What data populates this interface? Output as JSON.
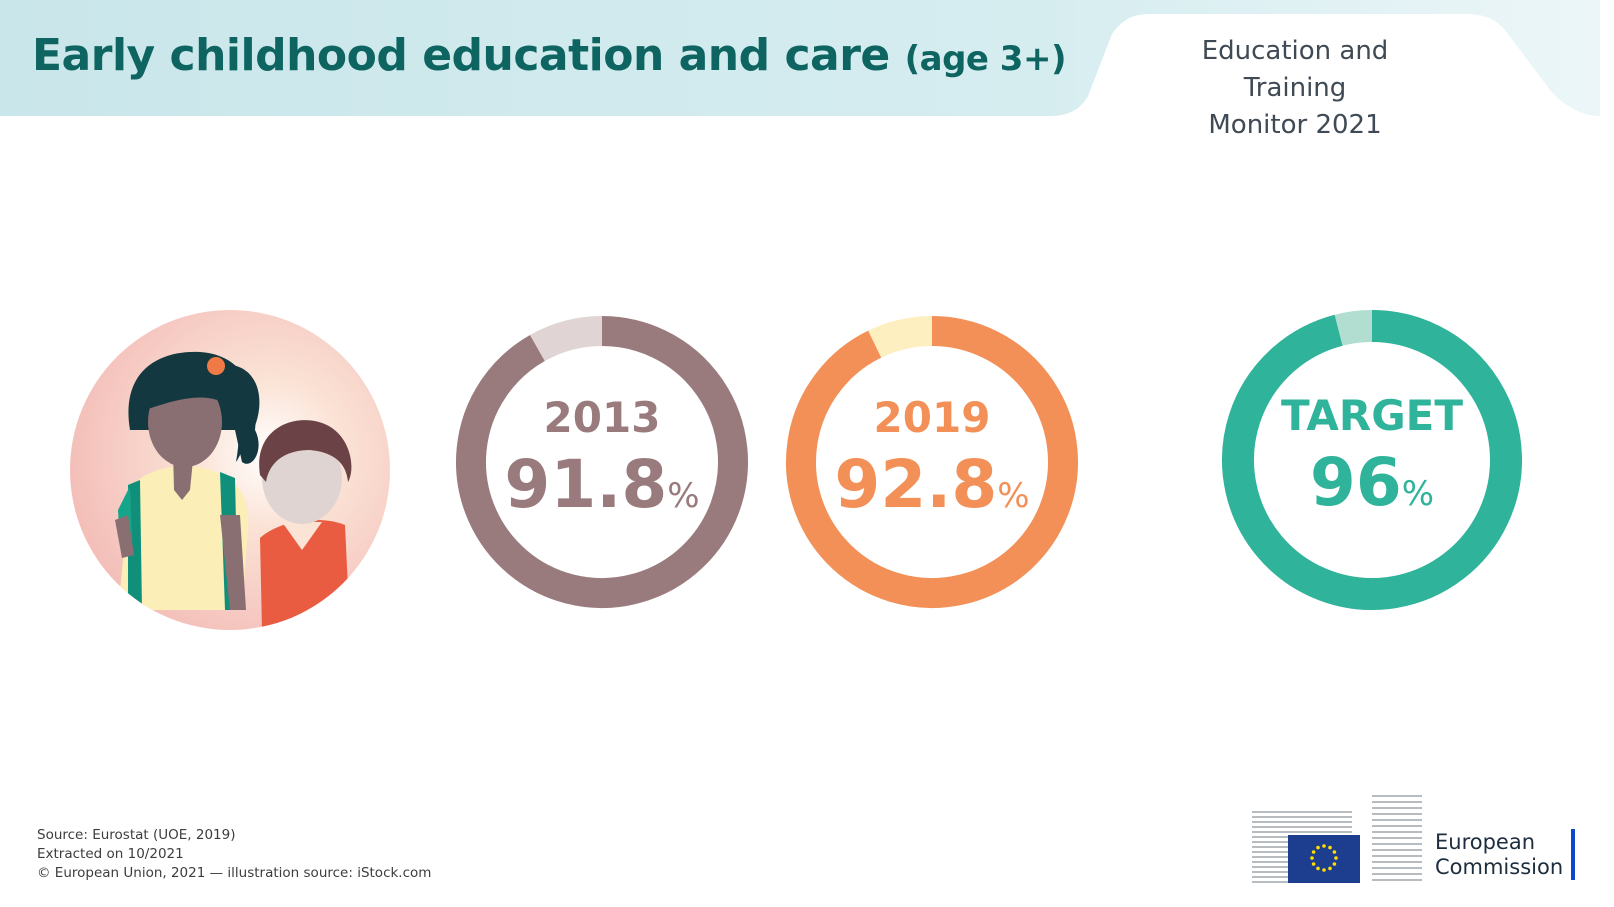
{
  "header": {
    "title": "Early childhood education and care",
    "subtitle": "(age 3+)",
    "monitor_line1": "Education and Training",
    "monitor_line2": "Monitor 2021"
  },
  "colors": {
    "banner": "#cde8ec",
    "title": "#0d6460",
    "y2013": "#9a7b7d",
    "y2013_gap": "#e0d4d4",
    "y2019": "#f29057",
    "y2019_gap": "#fdefc0",
    "target": "#2fb39a",
    "target_gap": "#b2ded2"
  },
  "chart_data": {
    "type": "pie",
    "unit": "%",
    "series": [
      {
        "label": "2013",
        "value": 91.8,
        "value_text": "91.8",
        "max": 100
      },
      {
        "label": "2019",
        "value": 92.8,
        "value_text": "92.8",
        "max": 100
      },
      {
        "label": "TARGET",
        "value": 96,
        "value_text": "96",
        "max": 100
      }
    ]
  },
  "footer": {
    "source": "Source: Eurostat (UOE, 2019)",
    "extracted": "Extracted on 10/2021",
    "copyright": "© European Union, 2021 — illustration source: iStock.com"
  },
  "logo": {
    "line1": "European",
    "line2": "Commission"
  }
}
